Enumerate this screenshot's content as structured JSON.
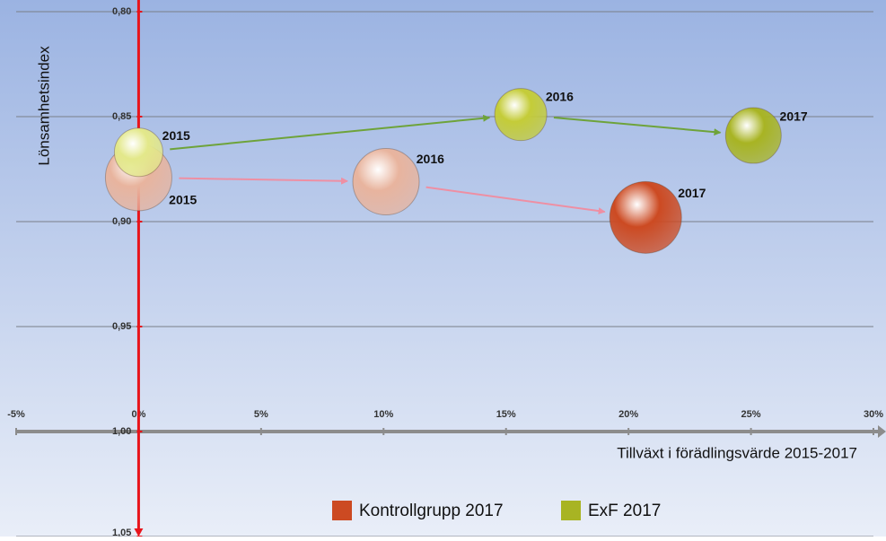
{
  "chart_data": {
    "type": "bubble",
    "x_label": "Tillväxt i förädlingsvärde 2015-2017",
    "y_label": "Lönsamhetsindex",
    "xlim": [
      -5,
      30
    ],
    "xticks": [
      {
        "value": -5,
        "label": "-5%"
      },
      {
        "value": 0,
        "label": "0%"
      },
      {
        "value": 5,
        "label": "5%"
      },
      {
        "value": 10,
        "label": "10%"
      },
      {
        "value": 15,
        "label": "15%"
      },
      {
        "value": 20,
        "label": "20%"
      },
      {
        "value": 25,
        "label": "25%"
      },
      {
        "value": 30,
        "label": "30%"
      }
    ],
    "ylim": [
      0.8,
      1.05
    ],
    "y_inverted": true,
    "yticks": [
      {
        "value": 0.8,
        "label": "0,80"
      },
      {
        "value": 0.85,
        "label": "0,85"
      },
      {
        "value": 0.9,
        "label": "0,90"
      },
      {
        "value": 0.95,
        "label": "0,95"
      },
      {
        "value": 1.0,
        "label": "1,00"
      },
      {
        "value": 1.05,
        "label": "1,05"
      }
    ],
    "grid": true,
    "legend": "bottom",
    "series": [
      {
        "name": "Kontrollgrupp 2017",
        "color": "#cc4a22",
        "arrow_color": "#ee8fa3",
        "point_colors": [
          "#e8b49e",
          "#e8b49e",
          "#cc4a22"
        ],
        "x": [
          0,
          10.1,
          20.7
        ],
        "values": [
          0.879,
          0.881,
          0.898
        ],
        "sizes": [
          37,
          37,
          40
        ],
        "labels": [
          "2015",
          "2016",
          "2017"
        ],
        "label_positions": [
          "below",
          "above",
          "above"
        ]
      },
      {
        "name": "ExF 2017",
        "color": "#a8b423",
        "arrow_color": "#6ea33a",
        "point_colors": [
          "#e3e88a",
          "#c4cc38",
          "#a8b423"
        ],
        "x": [
          0,
          15.6,
          25.1
        ],
        "values": [
          0.867,
          0.849,
          0.859
        ],
        "sizes": [
          27,
          29,
          31
        ],
        "labels": [
          "2015",
          "2016",
          "2017"
        ],
        "label_positions": [
          "above",
          "above",
          "above"
        ]
      }
    ]
  }
}
